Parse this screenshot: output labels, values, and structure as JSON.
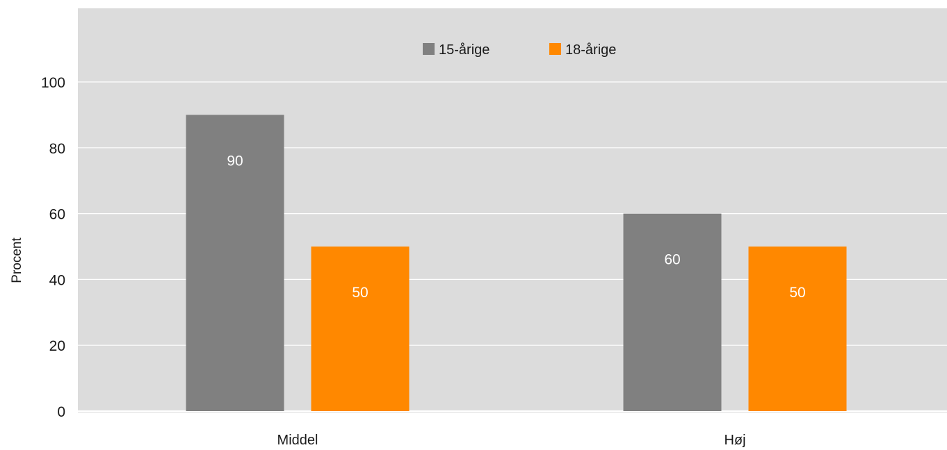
{
  "chart_data": {
    "type": "bar",
    "categories": [
      "Middel",
      "Høj"
    ],
    "series": [
      {
        "name": "15-årige",
        "values": [
          90,
          60
        ],
        "color": "#808080"
      },
      {
        "name": "18-årige",
        "values": [
          50,
          50
        ],
        "color": "#ff8800"
      }
    ],
    "title": "",
    "xlabel": "",
    "ylabel": "Procent",
    "ylim": [
      0,
      100
    ],
    "yticks": [
      0,
      20,
      40,
      60,
      80,
      100
    ],
    "grid": true,
    "legend": "top-center",
    "data_labels": true,
    "plot_background": "#dcdcdc",
    "grid_color": "#ffffff"
  }
}
